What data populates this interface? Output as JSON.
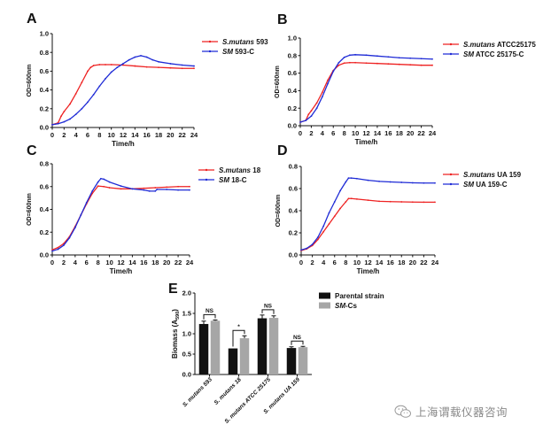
{
  "colors": {
    "red": "#ee2222",
    "blue": "#1f2bd6",
    "parental": "#111111",
    "smcs": "#a6a6a6"
  },
  "chart_data": [
    {
      "id": "A",
      "type": "line",
      "panel_label": "A",
      "xlabel": "Time/h",
      "ylabel": "OD=600nm",
      "xlim": [
        0,
        24
      ],
      "ylim": [
        0,
        1.0
      ],
      "xticks": [
        "0",
        "2",
        "4",
        "6",
        "8",
        "10",
        "12",
        "14",
        "16",
        "18",
        "20",
        "22",
        "24"
      ],
      "yticks": [
        "0.0",
        "0.2",
        "0.4",
        "0.6",
        "0.8",
        "1.0"
      ],
      "legend_position": "right",
      "series": [
        {
          "name": "S.mutans 593",
          "name_italic": "S.mutans",
          "name_rest": " 593",
          "color": "red",
          "x": [
            0,
            1,
            1.5,
            2,
            3,
            4,
            5,
            6,
            6.5,
            7,
            8,
            9,
            10,
            12,
            14,
            16,
            18,
            20,
            22,
            24
          ],
          "y": [
            0.03,
            0.05,
            0.12,
            0.17,
            0.25,
            0.36,
            0.48,
            0.6,
            0.64,
            0.66,
            0.67,
            0.67,
            0.67,
            0.665,
            0.655,
            0.645,
            0.64,
            0.635,
            0.63,
            0.63
          ]
        },
        {
          "name": "SM 593-C",
          "name_italic": "SM",
          "name_rest": " 593-C",
          "color": "blue",
          "x": [
            0,
            1,
            2,
            3,
            4,
            5,
            6,
            7,
            8,
            9,
            10,
            11,
            12,
            13,
            14,
            15,
            16,
            17,
            18,
            20,
            22,
            24
          ],
          "y": [
            0.03,
            0.04,
            0.06,
            0.09,
            0.14,
            0.2,
            0.27,
            0.35,
            0.44,
            0.52,
            0.59,
            0.64,
            0.68,
            0.72,
            0.75,
            0.765,
            0.75,
            0.72,
            0.7,
            0.68,
            0.665,
            0.655
          ]
        }
      ]
    },
    {
      "id": "B",
      "type": "line",
      "panel_label": "B",
      "xlabel": "Time/h",
      "ylabel": "OD=600nm",
      "xlim": [
        0,
        24
      ],
      "ylim": [
        0,
        1.0
      ],
      "xticks": [
        "0",
        "2",
        "4",
        "6",
        "8",
        "10",
        "12",
        "14",
        "16",
        "18",
        "20",
        "22",
        "24"
      ],
      "yticks": [
        "0.0",
        "0.2",
        "0.4",
        "0.6",
        "0.8",
        "1.0"
      ],
      "legend_position": "right",
      "series": [
        {
          "name": "S.mutans ATCC25175",
          "name_italic": "S.mutans",
          "name_rest": " ATCC25175",
          "color": "red",
          "x": [
            0,
            1,
            1.5,
            2,
            3,
            4,
            5,
            6,
            7,
            8,
            9,
            10,
            12,
            14,
            16,
            18,
            20,
            22,
            24
          ],
          "y": [
            0.04,
            0.06,
            0.13,
            0.17,
            0.26,
            0.38,
            0.52,
            0.63,
            0.69,
            0.715,
            0.72,
            0.72,
            0.715,
            0.71,
            0.705,
            0.7,
            0.695,
            0.69,
            0.69
          ]
        },
        {
          "name": "SM ATCC 25175-C",
          "name_italic": "SM",
          "name_rest": " ATCC 25175-C",
          "color": "blue",
          "x": [
            0,
            1,
            2,
            3,
            4,
            5,
            6,
            7,
            8,
            9,
            10,
            12,
            14,
            16,
            18,
            20,
            22,
            24
          ],
          "y": [
            0.04,
            0.06,
            0.11,
            0.2,
            0.33,
            0.48,
            0.62,
            0.72,
            0.78,
            0.805,
            0.81,
            0.805,
            0.795,
            0.785,
            0.775,
            0.77,
            0.765,
            0.76
          ]
        }
      ]
    },
    {
      "id": "C",
      "type": "line",
      "panel_label": "C",
      "xlabel": "Time/h",
      "ylabel": "OD=600nm",
      "xlim": [
        0,
        24
      ],
      "ylim": [
        0,
        0.8
      ],
      "xticks": [
        "0",
        "2",
        "4",
        "6",
        "8",
        "10",
        "12",
        "14",
        "16",
        "18",
        "20",
        "22",
        "24"
      ],
      "yticks": [
        "0.0",
        "0.2",
        "0.4",
        "0.6",
        "0.8"
      ],
      "legend_position": "right",
      "series": [
        {
          "name": "S.mutans 18",
          "name_italic": "S.mutans",
          "name_rest": " 18",
          "color": "red",
          "x": [
            0,
            1,
            2,
            3,
            4,
            5,
            6,
            7,
            8,
            9,
            10,
            12,
            14,
            16,
            18,
            20,
            22,
            24
          ],
          "y": [
            0.045,
            0.065,
            0.1,
            0.16,
            0.25,
            0.35,
            0.45,
            0.54,
            0.605,
            0.6,
            0.59,
            0.58,
            0.58,
            0.585,
            0.59,
            0.595,
            0.6,
            0.6
          ]
        },
        {
          "name": "SM 18-C",
          "name_italic": "SM",
          "name_rest": " 18-C",
          "color": "blue",
          "x": [
            0,
            1,
            2,
            3,
            4,
            5,
            6,
            7,
            8,
            8.5,
            9,
            10,
            12,
            14,
            16,
            17,
            18,
            18.3,
            20,
            22,
            24
          ],
          "y": [
            0.035,
            0.05,
            0.085,
            0.15,
            0.24,
            0.35,
            0.46,
            0.56,
            0.64,
            0.67,
            0.665,
            0.64,
            0.605,
            0.58,
            0.57,
            0.56,
            0.56,
            0.575,
            0.575,
            0.57,
            0.57
          ]
        }
      ]
    },
    {
      "id": "D",
      "type": "line",
      "panel_label": "D",
      "xlabel": "Time/h",
      "ylabel": "OD=600nm",
      "xlim": [
        0,
        24
      ],
      "ylim": [
        0,
        0.8
      ],
      "xticks": [
        "0",
        "2",
        "4",
        "6",
        "8",
        "10",
        "12",
        "14",
        "16",
        "18",
        "20",
        "22",
        "24"
      ],
      "yticks": [
        "0.0",
        "0.2",
        "0.4",
        "0.6",
        "0.8"
      ],
      "legend_position": "right",
      "series": [
        {
          "name": "S.mutans UA 159",
          "name_italic": "S.mutans",
          "name_rest": " UA 159",
          "color": "red",
          "x": [
            0,
            1,
            2,
            3,
            4,
            5,
            6,
            7,
            8,
            8.5,
            9,
            10,
            12,
            14,
            16,
            18,
            20,
            22,
            24
          ],
          "y": [
            0.04,
            0.055,
            0.085,
            0.14,
            0.21,
            0.28,
            0.35,
            0.42,
            0.48,
            0.51,
            0.51,
            0.505,
            0.495,
            0.485,
            0.482,
            0.48,
            0.478,
            0.477,
            0.477
          ]
        },
        {
          "name": "SM UA 159-C",
          "name_italic": "SM",
          "name_rest": " UA 159-C",
          "color": "blue",
          "x": [
            0,
            1,
            2,
            3,
            4,
            5,
            6,
            7,
            8,
            8.5,
            9,
            10,
            12,
            14,
            16,
            18,
            20,
            22,
            24
          ],
          "y": [
            0.045,
            0.06,
            0.095,
            0.16,
            0.26,
            0.38,
            0.48,
            0.58,
            0.66,
            0.695,
            0.695,
            0.69,
            0.675,
            0.665,
            0.66,
            0.656,
            0.652,
            0.65,
            0.65
          ]
        }
      ]
    },
    {
      "id": "E",
      "type": "bar",
      "panel_label": "E",
      "ylabel_main": "Biomass (A",
      "ylabel_sub": "590",
      "ylabel_end": ")",
      "ylim": [
        0,
        2.0
      ],
      "yticks": [
        "0.0",
        "0.5",
        "1.0",
        "1.5",
        "2.0"
      ],
      "categories": [
        "S. mutans 593",
        "S. mutans 18",
        "S. mutans ATCC 25175",
        "S. mutans UA 159"
      ],
      "legend_position": "top-right",
      "series": [
        {
          "name": "Parental strain",
          "color": "parental",
          "values": [
            1.24,
            0.64,
            1.38,
            0.65
          ],
          "errors": [
            0.07,
            0.0,
            0.08,
            0.03
          ]
        },
        {
          "name": "SM-Cs",
          "name_italic": "SM",
          "name_rest": "-Cs",
          "color": "smcs",
          "values": [
            1.32,
            0.89,
            1.39,
            0.67
          ],
          "errors": [
            0.02,
            0.06,
            0.05,
            0.02
          ]
        }
      ],
      "significance": [
        "NS",
        "*",
        "NS",
        "NS"
      ]
    }
  ],
  "watermark": {
    "icon": "wechat-icon",
    "text": "上海谓载仪器咨询"
  }
}
